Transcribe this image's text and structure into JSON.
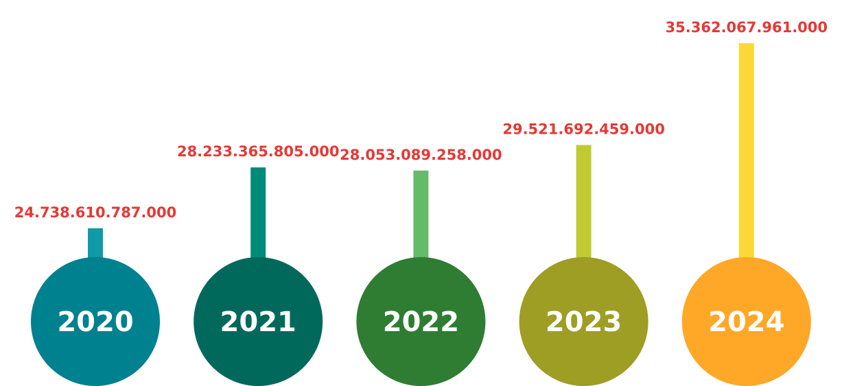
{
  "chart_data": {
    "type": "bar",
    "categories": [
      "2020",
      "2021",
      "2022",
      "2023",
      "2024"
    ],
    "values": [
      24738610787000,
      28233365805000,
      28053089258000,
      29521692459000,
      35362067961000
    ],
    "value_labels": [
      "24.738.610.787.000",
      "28.233.365.805.000",
      "28.053.089.258.000",
      "29.521.692.459.000",
      "35.362.067.961.000"
    ],
    "bar_colors": [
      "#0f9aa8",
      "#008a78",
      "#66bb6a",
      "#c0ca33",
      "#fdd835"
    ],
    "circle_colors": [
      "#00818f",
      "#00695c",
      "#2e7d32",
      "#9e9d24",
      "#ffa726"
    ],
    "label_color": "#e53935"
  }
}
